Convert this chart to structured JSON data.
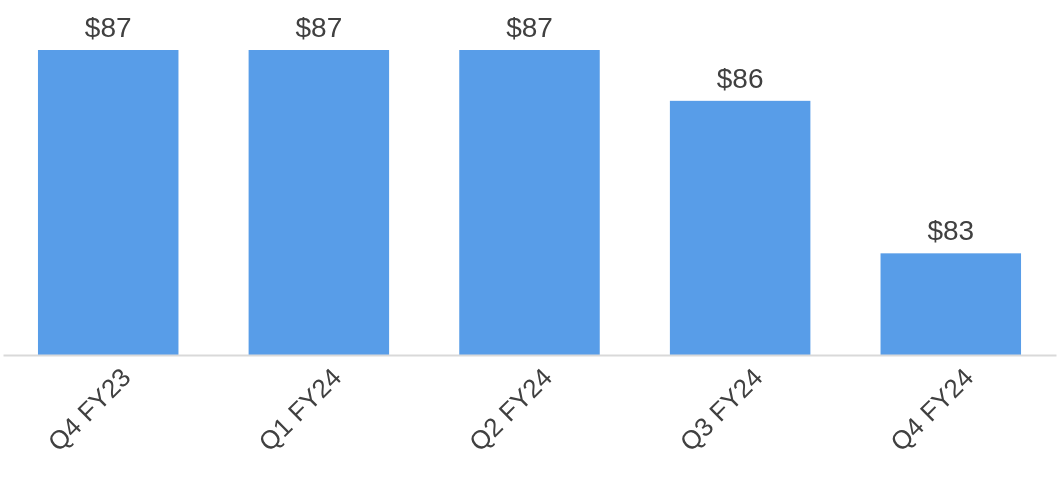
{
  "chart_data": {
    "type": "bar",
    "categories": [
      "Q4 FY23",
      "Q1 FY24",
      "Q2 FY24",
      "Q3 FY24",
      "Q4 FY24"
    ],
    "values": [
      87,
      87,
      87,
      86,
      83
    ],
    "value_labels": [
      "$87",
      "$87",
      "$87",
      "$86",
      "$83"
    ],
    "ylim": [
      81,
      87
    ],
    "color": "#589de8"
  }
}
